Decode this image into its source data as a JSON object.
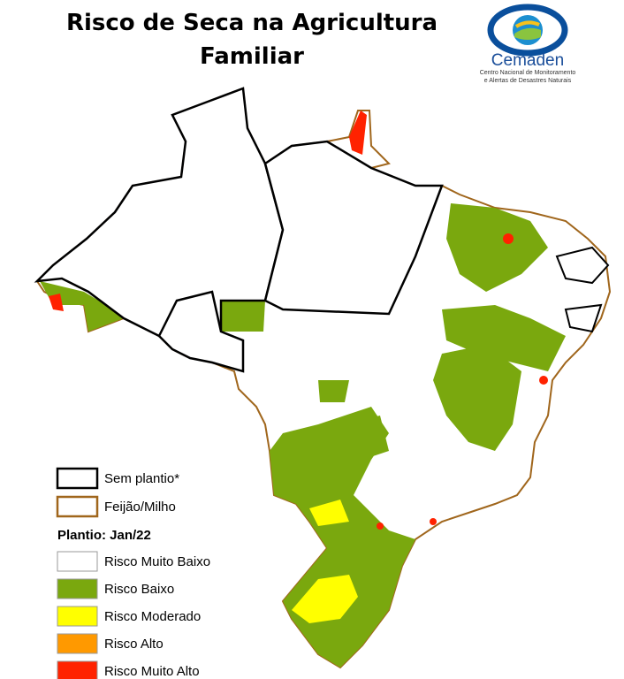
{
  "title_lines": [
    "Risco de Seca na Agricultura",
    "Familiar"
  ],
  "logo": {
    "name": "Cemaden",
    "subtitle_lines": [
      "Centro Nacional de Monitoramento",
      "e Alertas de Desastres Naturais"
    ]
  },
  "legend": {
    "boundaries": [
      {
        "label": "Sem plantio*",
        "stroke": "#000000"
      },
      {
        "label": "Feijão/Milho",
        "stroke": "#a0661c"
      }
    ],
    "heading": "Plantio: Jan/22",
    "classes": [
      {
        "label": "Risco Muito Baixo",
        "color": "#ffffff"
      },
      {
        "label": "Risco Baixo",
        "color": "#7aa80e"
      },
      {
        "label": "Risco Moderado",
        "color": "#ffff00"
      },
      {
        "label": "Risco Alto",
        "color": "#ff9900"
      },
      {
        "label": "Risco Muito Alto",
        "color": "#ff2200"
      }
    ]
  }
}
